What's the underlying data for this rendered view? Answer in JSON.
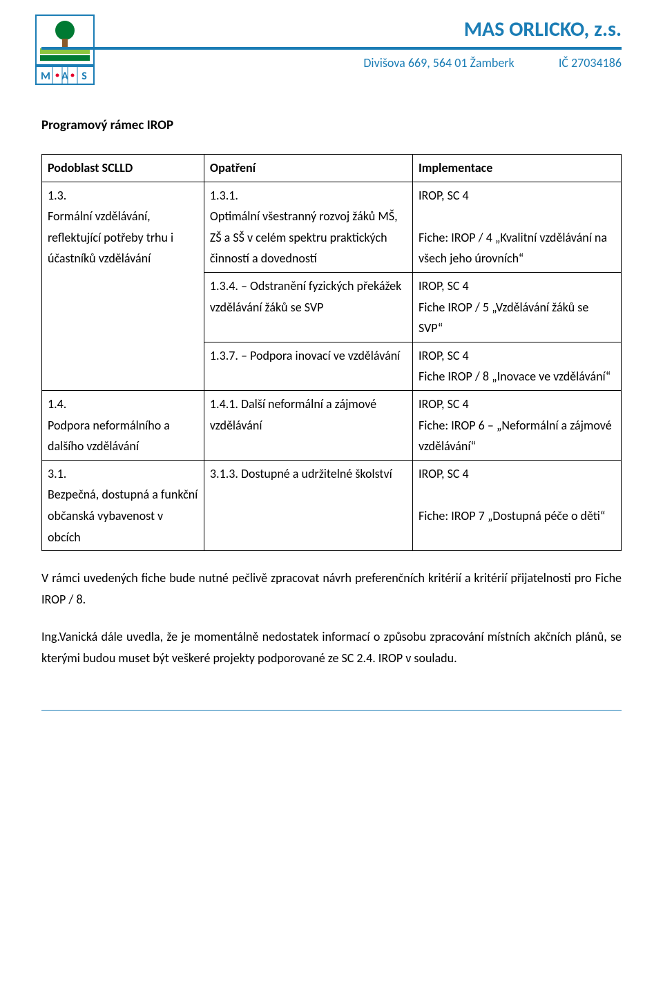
{
  "header": {
    "org_name": "MAS ORLICKO, z.s.",
    "address": "Divišova 669, 564 01 Žamberk",
    "ic": "IČ 27034186",
    "colors": {
      "brand": "#1b7db5",
      "logo_green_dark": "#007a33",
      "logo_green_light": "#8cc63f",
      "logo_brown": "#8a5a2b",
      "logo_blue": "#1b7db5",
      "logo_red": "#e4002b"
    }
  },
  "section_title": "Programový rámec IROP",
  "table": {
    "headers": [
      "Podoblast SCLLD",
      "Opatření",
      "Implementace"
    ],
    "rows": [
      {
        "a": "1.3.\nFormální vzdělávání, reflektující potřeby trhu i účastníků vzdělávání",
        "b": "1.3.1.\nOptimální všestranný rozvoj žáků MŠ, ZŠ a SŠ v celém spektru praktických činností a dovedností",
        "c": "IROP, SC 4\n\nFiche: IROP / 4 „Kvalitní vzdělávání na všech jeho úrovních“"
      },
      {
        "a": "",
        "b": "1.3.4. – Odstranění fyzických překážek vzdělávání žáků se SVP",
        "c": "IROP, SC 4\nFiche IROP / 5 „Vzdělávání žáků se SVP“"
      },
      {
        "a": "",
        "b": "1.3.7. – Podpora inovací ve vzdělávání",
        "c": "IROP, SC 4\nFiche IROP / 8 „Inovace ve vzdělávání“"
      },
      {
        "a": "1.4.\nPodpora neformálního a dalšího vzdělávání",
        "b": "1.4.1. Další neformální a zájmové vzdělávání",
        "c": "IROP, SC 4\nFiche: IROP 6 – „Neformální a zájmové vzdělávání“"
      },
      {
        "a": "3.1.\nBezpečná, dostupná a funkční občanská vybavenost v obcích",
        "b": "3.1.3. Dostupné a udržitelné školství",
        "c": "IROP, SC 4\n\nFiche: IROP 7 „Dostupná péče o děti“"
      }
    ]
  },
  "paragraphs": [
    "V rámci uvedených fiche bude nutné pečlivě zpracovat návrh preferenčních kritérií a kritérií přijatelnosti pro Fiche IROP / 8.",
    "Ing.Vanická dále uvedla, že je momentálně nedostatek informací o způsobu zpracování místních akčních plánů, se kterými budou muset být veškeré projekty podporované ze SC 2.4. IROP v souladu."
  ]
}
